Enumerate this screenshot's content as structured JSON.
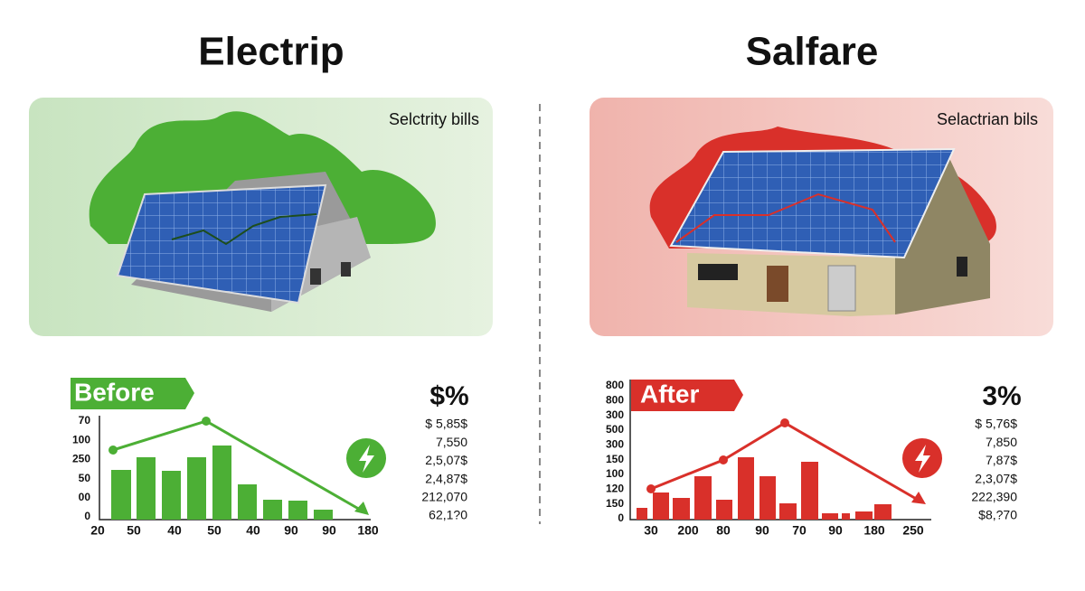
{
  "panels": [
    {
      "title": "Electrip",
      "card_label": "Selctrity bills",
      "badge": "Before",
      "y_labels": [
        "70",
        "100",
        "250",
        "50",
        "00",
        "0"
      ],
      "x_labels": [
        "20",
        "50",
        "40",
        "50",
        "40",
        "90",
        "90",
        "180"
      ],
      "big_value": "$%",
      "values": [
        "$  5,85$",
        "7,550",
        "2,5,07$",
        "2,4,87$",
        "212,070",
        "62,1?0"
      ]
    },
    {
      "title": "Salfare",
      "card_label": "Selactrian bils",
      "badge": "After",
      "y_labels": [
        "800",
        "800",
        "300",
        "500",
        "300",
        "150",
        "100",
        "120",
        "150",
        "0"
      ],
      "x_labels": [
        "30",
        "200",
        "80",
        "90",
        "70",
        "90",
        "180",
        "250"
      ],
      "big_value": "3%",
      "values": [
        "$  5,76$",
        "7,850",
        "7,87$",
        "2,3,07$",
        "222,390",
        "$8,?70"
      ]
    }
  ]
}
